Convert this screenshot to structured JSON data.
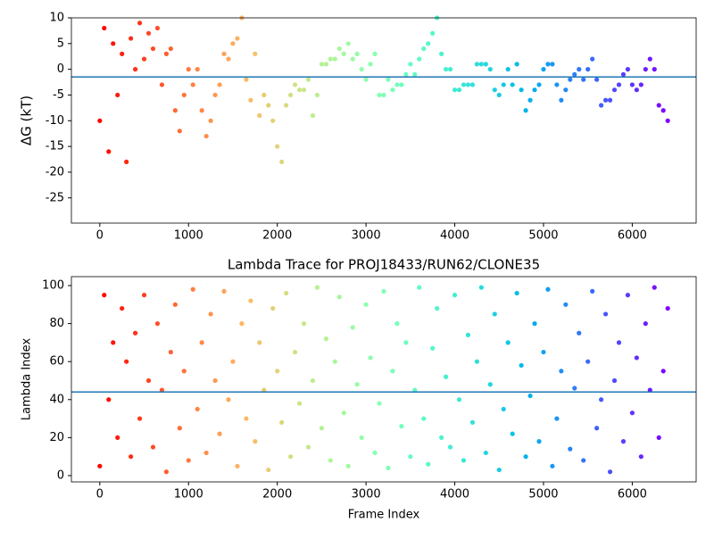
{
  "chart_data": [
    {
      "type": "scatter",
      "ylabel": "ΔG (kT)",
      "colormap": "rainbow_r",
      "hline": -1.5,
      "hline_color": "#1f77b4",
      "xlim": [
        -320,
        6720
      ],
      "ylim": [
        -29.9,
        10
      ],
      "xticks": [
        0,
        1000,
        2000,
        3000,
        4000,
        5000,
        6000
      ],
      "yticks": [
        -25,
        -20,
        -15,
        -10,
        -5,
        0,
        5,
        10
      ],
      "x": [
        0,
        50,
        100,
        150,
        200,
        250,
        300,
        350,
        400,
        450,
        500,
        550,
        600,
        650,
        700,
        750,
        800,
        850,
        900,
        950,
        1000,
        1050,
        1100,
        1150,
        1200,
        1250,
        1300,
        1350,
        1400,
        1450,
        1500,
        1550,
        1600,
        1650,
        1700,
        1750,
        1800,
        1850,
        1900,
        1950,
        2000,
        2050,
        2100,
        2150,
        2200,
        2250,
        2300,
        2350,
        2400,
        2450,
        2500,
        2550,
        2600,
        2650,
        2700,
        2750,
        2800,
        2850,
        2900,
        2950,
        3000,
        3050,
        3100,
        3150,
        3200,
        3250,
        3300,
        3350,
        3400,
        3450,
        3500,
        3550,
        3600,
        3650,
        3700,
        3750,
        3800,
        3850,
        3900,
        3950,
        4000,
        4050,
        4100,
        4150,
        4200,
        4250,
        4300,
        4350,
        4400,
        4450,
        4500,
        4550,
        4600,
        4650,
        4700,
        4750,
        4800,
        4850,
        4900,
        4950,
        5000,
        5050,
        5100,
        5150,
        5200,
        5250,
        5300,
        5350,
        5400,
        5450,
        5500,
        5550,
        5600,
        5650,
        5700,
        5750,
        5800,
        5850,
        5900,
        5950,
        6000,
        6050,
        6100,
        6150,
        6200,
        6250,
        6300,
        6350,
        6400
      ],
      "values": [
        -10,
        8,
        -16,
        5,
        -5,
        3,
        -18,
        6,
        0,
        9,
        2,
        7,
        4,
        8,
        -3,
        3,
        4,
        -8,
        -12,
        -5,
        0,
        -3,
        0,
        -8,
        -13,
        -10,
        -5,
        -3,
        3,
        2,
        5,
        6,
        10,
        -2,
        -6,
        3,
        -9,
        -5,
        -7,
        -10,
        -15,
        -18,
        -7,
        -5,
        -3,
        -4,
        -4,
        -2,
        -9,
        -5,
        1,
        1,
        2,
        2,
        4,
        3,
        5,
        2,
        3,
        0,
        -2,
        1,
        3,
        -5,
        -5,
        -2,
        -4,
        -3,
        -3,
        -1,
        1,
        -1,
        2,
        4,
        5,
        7,
        10,
        3,
        0,
        0,
        -4,
        -4,
        -3,
        -3,
        -3,
        1,
        1,
        1,
        0,
        -4,
        -5,
        -3,
        0,
        -3,
        1,
        -4,
        -8,
        -6,
        -4,
        -3,
        0,
        1,
        1,
        -3,
        -6,
        -4,
        -2,
        -1,
        0,
        -2,
        0,
        2,
        -2,
        -7,
        -6,
        -6,
        -4,
        -3,
        -1,
        0,
        -3,
        -4,
        -3,
        0,
        2,
        0,
        -7,
        -8,
        -10
      ]
    },
    {
      "type": "scatter",
      "title": "Lambda Trace for PROJ18433/RUN62/CLONE35",
      "xlabel": "Frame Index",
      "ylabel": "Lambda Index",
      "colormap": "rainbow_r",
      "hline": 44,
      "hline_color": "#1f77b4",
      "xlim": [
        -320,
        6720
      ],
      "ylim": [
        -3.3,
        104.7
      ],
      "xticks": [
        0,
        1000,
        2000,
        3000,
        4000,
        5000,
        6000
      ],
      "yticks": [
        0,
        20,
        40,
        60,
        80,
        100
      ],
      "x": [
        0,
        50,
        100,
        150,
        200,
        250,
        300,
        350,
        400,
        450,
        500,
        550,
        600,
        650,
        700,
        750,
        800,
        850,
        900,
        950,
        1000,
        1050,
        1100,
        1150,
        1200,
        1250,
        1300,
        1350,
        1400,
        1450,
        1500,
        1550,
        1600,
        1650,
        1700,
        1750,
        1800,
        1850,
        1900,
        1950,
        2000,
        2050,
        2100,
        2150,
        2200,
        2250,
        2300,
        2350,
        2400,
        2450,
        2500,
        2550,
        2600,
        2650,
        2700,
        2750,
        2800,
        2850,
        2900,
        2950,
        3000,
        3050,
        3100,
        3150,
        3200,
        3250,
        3300,
        3350,
        3400,
        3450,
        3500,
        3550,
        3600,
        3650,
        3700,
        3750,
        3800,
        3850,
        3900,
        3950,
        4000,
        4050,
        4100,
        4150,
        4200,
        4250,
        4300,
        4350,
        4400,
        4450,
        4500,
        4550,
        4600,
        4650,
        4700,
        4750,
        4800,
        4850,
        4900,
        4950,
        5000,
        5050,
        5100,
        5150,
        5200,
        5250,
        5300,
        5350,
        5400,
        5450,
        5500,
        5550,
        5600,
        5650,
        5700,
        5750,
        5800,
        5850,
        5900,
        5950,
        6000,
        6050,
        6100,
        6150,
        6200,
        6250,
        6300,
        6350,
        6400
      ],
      "values": [
        5,
        95,
        40,
        70,
        20,
        88,
        60,
        10,
        75,
        30,
        95,
        50,
        15,
        80,
        45,
        2,
        65,
        90,
        25,
        55,
        8,
        98,
        35,
        70,
        12,
        85,
        50,
        22,
        97,
        40,
        60,
        5,
        80,
        30,
        92,
        18,
        70,
        45,
        3,
        88,
        55,
        28,
        96,
        10,
        65,
        38,
        80,
        15,
        50,
        99,
        25,
        72,
        8,
        60,
        94,
        33,
        5,
        78,
        48,
        20,
        90,
        62,
        12,
        38,
        97,
        4,
        55,
        80,
        26,
        70,
        10,
        45,
        99,
        30,
        6,
        67,
        88,
        20,
        52,
        15,
        95,
        40,
        8,
        74,
        28,
        60,
        99,
        12,
        48,
        85,
        3,
        35,
        70,
        22,
        96,
        58,
        10,
        42,
        80,
        18,
        65,
        98,
        5,
        30,
        55,
        90,
        14,
        46,
        75,
        8,
        60,
        97,
        25,
        40,
        85,
        2,
        50,
        70,
        18,
        95,
        33,
        62,
        10,
        80,
        45,
        99,
        20,
        55,
        88
      ]
    }
  ]
}
